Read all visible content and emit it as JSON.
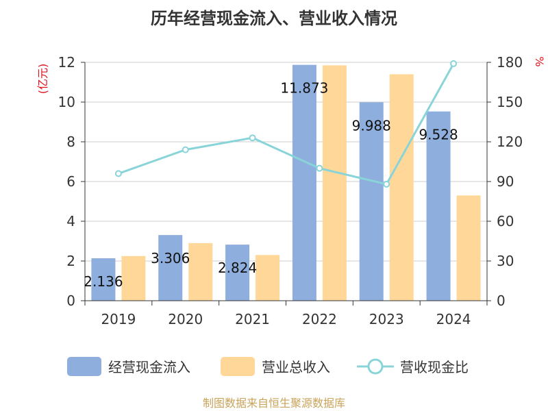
{
  "chart_data": {
    "type": "bar",
    "title": "历年经营现金流入、营业收入情况",
    "categories": [
      "2019",
      "2020",
      "2021",
      "2022",
      "2023",
      "2024"
    ],
    "series": [
      {
        "name": "经营现金流入",
        "type": "bar",
        "axis": "left",
        "color": "#8eaedd",
        "values": [
          2.136,
          3.306,
          2.824,
          11.873,
          9.988,
          9.528
        ],
        "labels": [
          "2.136",
          "3.306",
          "2.824",
          "11.873",
          "9.988",
          "9.528"
        ]
      },
      {
        "name": "营业总收入",
        "type": "bar",
        "axis": "left",
        "color": "#ffd899",
        "values": [
          2.25,
          2.9,
          2.3,
          11.85,
          11.4,
          5.3
        ]
      },
      {
        "name": "营收现金比",
        "type": "line",
        "axis": "right",
        "color": "#88d4d8",
        "values": [
          96,
          114,
          123,
          100,
          88,
          179
        ]
      }
    ],
    "y_left": {
      "unit": "(亿元)",
      "min": 0,
      "max": 12,
      "ticks": [
        0,
        2,
        4,
        6,
        8,
        10,
        12
      ]
    },
    "y_right": {
      "unit": "%",
      "min": 0,
      "max": 180,
      "ticks": [
        0,
        30,
        60,
        90,
        120,
        150,
        180
      ]
    },
    "grid": true,
    "legend_position": "bottom",
    "source": "制图数据来自恒生聚源数据库",
    "colors": {
      "axis": "#333333",
      "grid": "#cccccc",
      "unit": "#e0101a",
      "source": "#c8a35a"
    }
  }
}
